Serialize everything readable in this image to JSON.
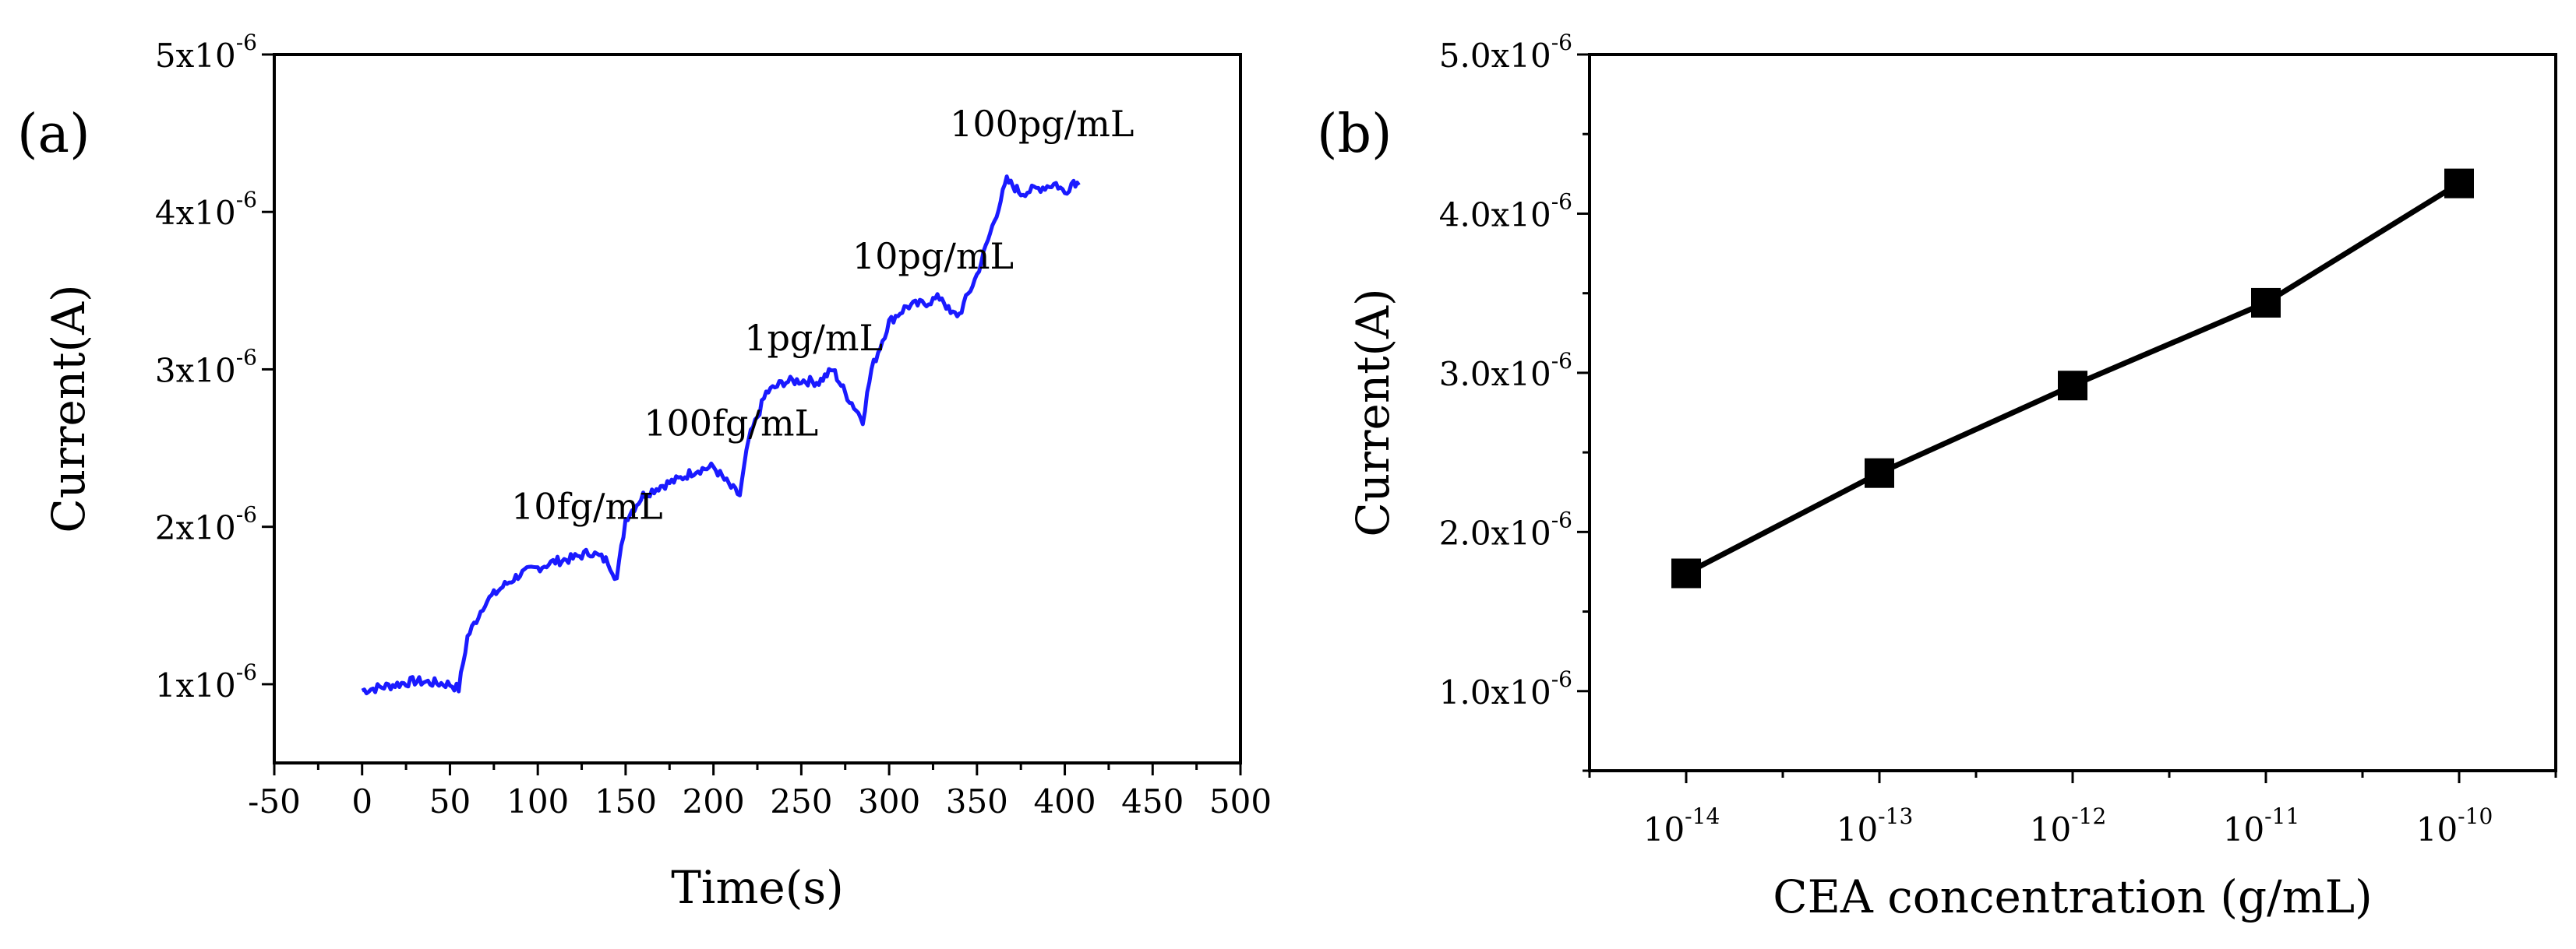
{
  "chart_data": [
    {
      "type": "line",
      "panel_label": "(a)",
      "xlabel": "Time(s)",
      "ylabel": "Current(A)",
      "xlim": [
        -50,
        500
      ],
      "ylim": [
        5e-07,
        5e-06
      ],
      "x_ticks": [
        -50,
        0,
        50,
        100,
        150,
        200,
        250,
        300,
        350,
        400,
        450,
        500
      ],
      "x_tick_labels": [
        "-50",
        "0",
        "50",
        "100",
        "150",
        "200",
        "250",
        "300",
        "350",
        "400",
        "450",
        "500"
      ],
      "y_ticks": [
        {
          "value": 1e-06,
          "base": "1x10",
          "exp": "-6"
        },
        {
          "value": 2e-06,
          "base": "2x10",
          "exp": "-6"
        },
        {
          "value": 3e-06,
          "base": "3x10",
          "exp": "-6"
        },
        {
          "value": 4e-06,
          "base": "4x10",
          "exp": "-6"
        },
        {
          "value": 5e-06,
          "base": "5x10",
          "exp": "-6"
        }
      ],
      "line_color": "#1a1aff",
      "series": [
        {
          "name": "current",
          "x": [
            0,
            10,
            20,
            30,
            40,
            50,
            55,
            60,
            70,
            80,
            90,
            100,
            110,
            120,
            130,
            140,
            145,
            150,
            160,
            170,
            180,
            190,
            200,
            210,
            215,
            220,
            230,
            240,
            250,
            260,
            268,
            275,
            285,
            290,
            300,
            310,
            320,
            330,
            335,
            340,
            350,
            360,
            367,
            375,
            385,
            395,
            400,
            405,
            408
          ],
          "y": [
            9.6e-07,
            9.8e-07,
            1e-06,
            1.02e-06,
            1.01e-06,
            1e-06,
            9.7e-07,
            1.3e-06,
            1.52e-06,
            1.62e-06,
            1.7e-06,
            1.74e-06,
            1.78e-06,
            1.8e-06,
            1.84e-06,
            1.78e-06,
            1.67e-06,
            2.05e-06,
            2.2e-06,
            2.26e-06,
            2.3e-06,
            2.36e-06,
            2.38e-06,
            2.25e-06,
            2.2e-06,
            2.55e-06,
            2.85e-06,
            2.92e-06,
            2.93e-06,
            2.92e-06,
            3e-06,
            2.85e-06,
            2.68e-06,
            3e-06,
            3.3e-06,
            3.4e-06,
            3.42e-06,
            3.46e-06,
            3.35e-06,
            3.35e-06,
            3.6e-06,
            3.95e-06,
            4.2e-06,
            4.12e-06,
            4.15e-06,
            4.18e-06,
            4.12e-06,
            4.2e-06,
            4.17e-06
          ]
        }
      ],
      "annotations": [
        {
          "text": "10fg/mL",
          "x": 128,
          "y": 2.05e-06
        },
        {
          "text": "100fg/mL",
          "x": 210,
          "y": 2.58e-06
        },
        {
          "text": "1pg/mL",
          "x": 257,
          "y": 3.12e-06
        },
        {
          "text": "10pg/mL",
          "x": 325,
          "y": 3.64e-06
        },
        {
          "text": "100pg/mL",
          "x": 387,
          "y": 4.48e-06
        }
      ]
    },
    {
      "type": "line",
      "panel_label": "(b)",
      "xlabel": "CEA concentration (g/mL)",
      "ylabel": "Current(A)",
      "xlim": [
        -14.5,
        -9.5
      ],
      "ylim": [
        5e-07,
        5e-06
      ],
      "x_ticks": [
        {
          "value": -14,
          "base": "10",
          "exp": "-14"
        },
        {
          "value": -13,
          "base": "10",
          "exp": "-13"
        },
        {
          "value": -12,
          "base": "10",
          "exp": "-12"
        },
        {
          "value": -11,
          "base": "10",
          "exp": "-11"
        },
        {
          "value": -10,
          "base": "10",
          "exp": "-10"
        }
      ],
      "y_ticks": [
        {
          "value": 1e-06,
          "base": "1.0x10",
          "exp": "-6"
        },
        {
          "value": 2e-06,
          "base": "2.0x10",
          "exp": "-6"
        },
        {
          "value": 3e-06,
          "base": "3.0x10",
          "exp": "-6"
        },
        {
          "value": 4e-06,
          "base": "4.0x10",
          "exp": "-6"
        },
        {
          "value": 5e-06,
          "base": "5.0x10",
          "exp": "-6"
        }
      ],
      "line_color": "#000000",
      "series": [
        {
          "name": "current",
          "x": [
            -14,
            -13,
            -12,
            -11,
            -10
          ],
          "y": [
            1.74e-06,
            2.37e-06,
            2.92e-06,
            3.44e-06,
            4.19e-06
          ]
        }
      ]
    }
  ]
}
